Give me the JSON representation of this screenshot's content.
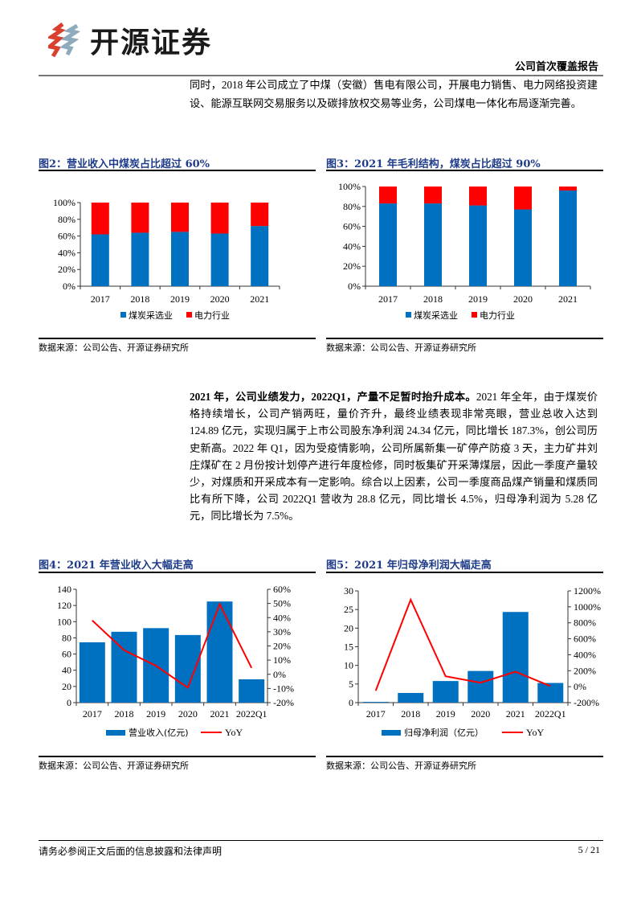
{
  "header": {
    "logo_text": "开源证券",
    "report_type": "公司首次覆盖报告"
  },
  "paragraph1": "同时，2018 年公司成立了中煤（安徽）售电有限公司，开展电力销售、电力网络投资建设、能源互联网交易服务以及碳排放权交易等业务，公司煤电一体化布局逐渐完善。",
  "paragraph2": {
    "bold": "2021 年，公司业绩发力，2022Q1，产量不足暂时抬升成本。",
    "text": "2021 年全年，由于煤炭价格持续增长，公司产销两旺，量价齐升，最终业绩表现非常亮眼，营业总收入达到 124.89 亿元，实现归属于上市公司股东净利润 24.34 亿元，同比增长 187.3%，创公司历史新高。2022 年 Q1，因为受疫情影响，公司所属新集一矿停产防疫 3 天，主力矿井刘庄煤矿在 2 月份按计划停产进行年度检修，同时板集矿开采薄煤层，因此一季度产量较少，对煤质和开采成本有一定影响。综合以上因素，公司一季度商品煤产销量和煤质同比有所下降，公司 2022Q1 营收为 28.8 亿元，同比增长 4.5%，归母净利润为 5.28 亿元，同比增长为 7.5%。"
  },
  "figures": [
    {
      "title": "图2：营业收入中煤炭占比超过 60%",
      "source": "数据来源：公司公告、开源证券研究所"
    },
    {
      "title": "图3：2021 年毛利结构，煤炭占比超过 90%",
      "source": "数据来源：公司公告、开源证券研究所"
    },
    {
      "title": "图4：2021 年营业收入大幅走高",
      "source": "数据来源：公司公告、开源证券研究所"
    },
    {
      "title": "图5：2021 年归母净利润大幅走高",
      "source": "数据来源：公司公告、开源证券研究所"
    }
  ],
  "footer": {
    "disclaimer": "请务必参阅正文后面的信息披露和法律声明",
    "page": "5 / 21"
  },
  "colors": {
    "blue": "#0070C0",
    "red": "#FF0000",
    "title": "#1f3c88"
  },
  "chart_data": [
    {
      "type": "bar",
      "stacked": true,
      "categories": [
        "2017",
        "2018",
        "2019",
        "2020",
        "2021"
      ],
      "series": [
        {
          "name": "煤炭采选业",
          "values": [
            62,
            64,
            65,
            63,
            72
          ]
        },
        {
          "name": "电力行业",
          "values": [
            38,
            36,
            35,
            37,
            28
          ]
        }
      ],
      "ylim": [
        0,
        100
      ],
      "yticks": [
        "0%",
        "20%",
        "40%",
        "60%",
        "80%",
        "100%"
      ],
      "legend": "bottom"
    },
    {
      "type": "bar",
      "stacked": true,
      "categories": [
        "2017",
        "2018",
        "2019",
        "2020",
        "2021"
      ],
      "series": [
        {
          "name": "煤炭采选业",
          "values": [
            83,
            83,
            81,
            77,
            96
          ]
        },
        {
          "name": "电力行业",
          "values": [
            17,
            17,
            19,
            23,
            4
          ]
        }
      ],
      "ylim": [
        0,
        100
      ],
      "yticks": [
        "0%",
        "20%",
        "40%",
        "60%",
        "80%",
        "100%"
      ],
      "legend": "bottom"
    },
    {
      "type": "bar+line",
      "categories": [
        "2017",
        "2018",
        "2019",
        "2020",
        "2021",
        "2022Q1"
      ],
      "series": [
        {
          "name": "营业收入(亿元)",
          "axis": "left",
          "kind": "bar",
          "values": [
            74.5,
            87.5,
            92,
            83.5,
            124.89,
            28.8
          ]
        },
        {
          "name": "YoY",
          "axis": "right",
          "kind": "line",
          "values": [
            38,
            17,
            6,
            -9.5,
            49.5,
            4.5
          ]
        }
      ],
      "ylim": [
        0,
        140
      ],
      "yticks": [
        "0",
        "20",
        "40",
        "60",
        "80",
        "100",
        "120",
        "140"
      ],
      "y2lim": [
        -20,
        60
      ],
      "y2ticks": [
        "-20%",
        "-10%",
        "0%",
        "10%",
        "20%",
        "30%",
        "40%",
        "50%",
        "60%"
      ],
      "legend": "bottom"
    },
    {
      "type": "bar+line",
      "categories": [
        "2017",
        "2018",
        "2019",
        "2020",
        "2021",
        "2022Q1"
      ],
      "series": [
        {
          "name": "归母净利润（亿元）",
          "axis": "left",
          "kind": "bar",
          "values": [
            0.2,
            2.6,
            5.8,
            8.5,
            24.34,
            5.28
          ]
        },
        {
          "name": "YoY",
          "axis": "right",
          "kind": "line",
          "values": [
            -50,
            1090,
            130,
            50,
            187.3,
            7.5
          ]
        }
      ],
      "ylim": [
        0,
        30
      ],
      "yticks": [
        "0",
        "5",
        "10",
        "15",
        "20",
        "25",
        "30"
      ],
      "y2lim": [
        -200,
        1200
      ],
      "y2ticks": [
        "-200%",
        "0%",
        "200%",
        "400%",
        "600%",
        "800%",
        "1000%",
        "1200%"
      ],
      "legend": "bottom"
    }
  ]
}
